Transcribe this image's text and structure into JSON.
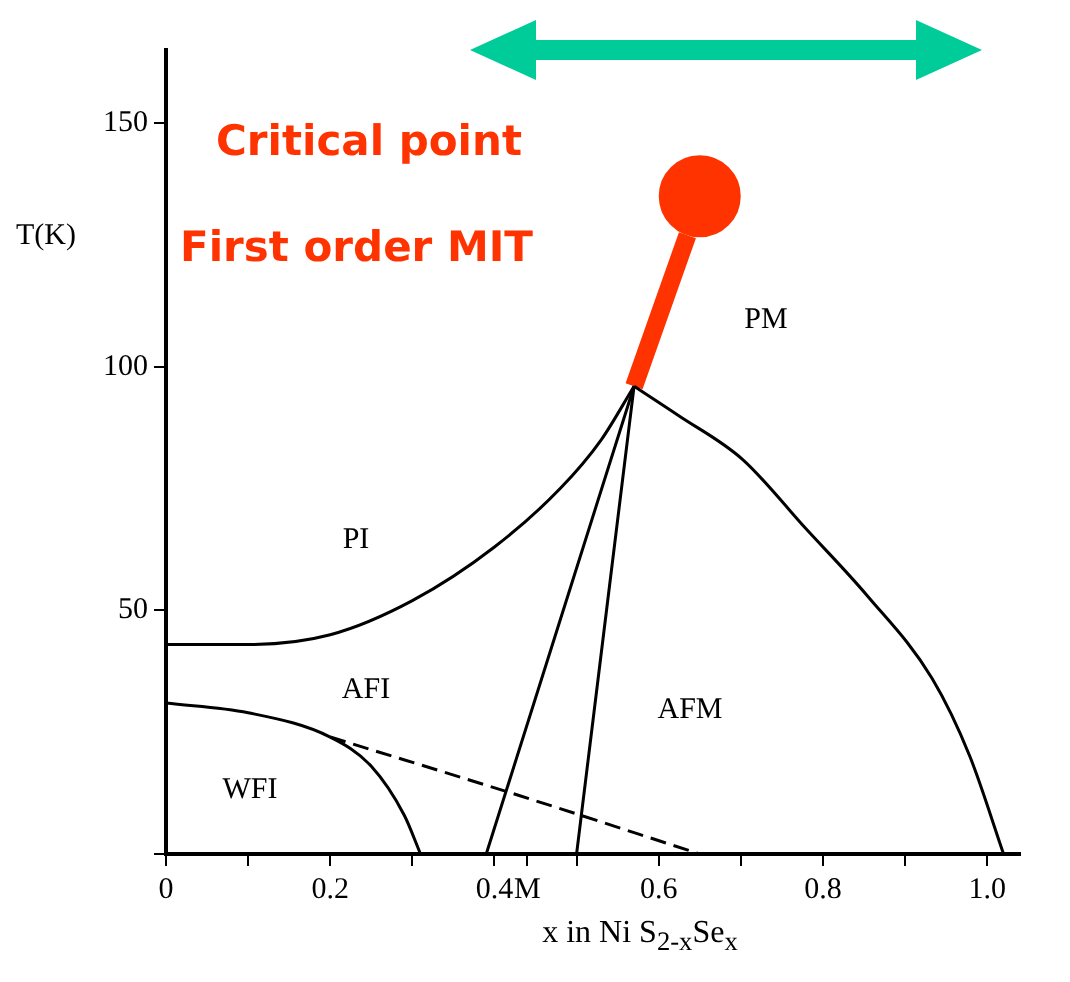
{
  "chart_data": {
    "type": "line",
    "xlabel": "x in Ni S$_{2-x}$Se$_{x}$",
    "ylabel": "T(K)",
    "xlim": [
      0,
      1.04
    ],
    "ylim": [
      0,
      165
    ],
    "xticks": [
      0,
      {
        "value": 0.1,
        "label": null
      },
      0.2,
      {
        "value": 0.3,
        "label": null
      },
      0.4,
      {
        "value": 0.44,
        "label": "M"
      },
      {
        "value": 0.5,
        "label": null
      },
      0.6,
      {
        "value": 0.7,
        "label": null
      },
      0.8,
      {
        "value": 0.9,
        "label": null
      },
      {
        "value": 1,
        "label": "1.0"
      }
    ],
    "yticks": [
      {
        "value": 0,
        "label": null
      },
      50,
      100,
      150
    ],
    "grid": false,
    "legend": false,
    "marker": "none",
    "series": [
      {
        "x": [
          0,
          0.1,
          0.2,
          0.3,
          0.4,
          0.48,
          0.53,
          0.57
        ],
        "values": [
          43,
          43,
          45,
          52,
          63,
          75,
          85,
          96
        ],
        "color": "#000000"
      },
      {
        "x": [
          0.57,
          0.624,
          0.702,
          0.778,
          0.854,
          0.933,
          0.979,
          1.02
        ],
        "values": [
          96,
          90,
          81,
          67,
          53,
          36,
          20,
          0
        ],
        "color": "#000000"
      },
      {
        "x": [
          0,
          0.1,
          0.2,
          0.25,
          0.29,
          0.31
        ],
        "values": [
          31,
          29,
          24,
          18,
          8,
          0
        ],
        "color": "#000000"
      },
      {
        "x": [
          0.2,
          0.43,
          0.65
        ],
        "values": [
          24,
          12,
          0
        ],
        "color": "#000000",
        "line_style": "dashed"
      },
      {
        "x": [
          0.39,
          0.57
        ],
        "values": [
          0,
          96
        ],
        "color": "#000000"
      },
      {
        "x": [
          0.5,
          0.57
        ],
        "values": [
          0,
          96
        ],
        "color": "#000000"
      },
      {
        "x": [
          0.57,
          0.635
        ],
        "values": [
          96,
          127
        ],
        "color": "#ff3300"
      },
      {
        "type": "scatter",
        "x": [
          0.65
        ],
        "values": [
          135
        ],
        "color": "#ff3300",
        "marker": "circle"
      }
    ],
    "annotations": [
      "PI",
      "PM",
      "AFI",
      "AFM",
      "WFI",
      "Critical point",
      "First order MIT"
    ]
  }
}
